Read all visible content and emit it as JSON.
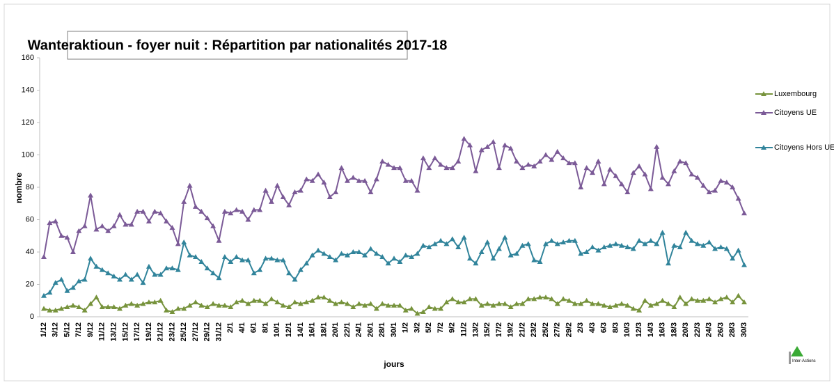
{
  "chart_data": {
    "type": "line",
    "title": "Wanteraktioun - foyer nuit : Répartition par nationalités 2017-18",
    "y_label": "nombre",
    "x_label": "jours",
    "logo": "Inter-Actions",
    "categories": [
      "1/12",
      null,
      "3/12",
      null,
      "5/12",
      null,
      "7/12",
      null,
      "9/12",
      null,
      "11/12",
      null,
      "13/12",
      null,
      "15/12",
      null,
      "17/12",
      null,
      "19/12",
      null,
      "21/12",
      null,
      "23/12",
      null,
      "25/12",
      null,
      "27/12",
      null,
      "29/12",
      null,
      "31/12",
      null,
      "2/1",
      null,
      "4/1",
      null,
      "6/1",
      null,
      "8/1",
      null,
      "10/1",
      null,
      "12/1",
      null,
      "14/1",
      null,
      "16/1",
      null,
      "18/1",
      null,
      "20/1",
      null,
      "22/1",
      null,
      "24/1",
      null,
      "26/1",
      null,
      "28/1",
      null,
      "30/1",
      null,
      "1/2",
      null,
      "3/2",
      null,
      "5/2",
      null,
      "7/2",
      null,
      "9/2",
      null,
      "11/2",
      null,
      "13/2",
      null,
      "15/2",
      null,
      "17/2",
      null,
      "19/2",
      null,
      "21/2",
      null,
      "23/2",
      null,
      "25/2",
      null,
      "27/2",
      null,
      "29/2",
      null,
      "2/3",
      null,
      "4/3",
      null,
      "6/3",
      null,
      "8/3",
      null,
      "10/3",
      null,
      "12/3",
      null,
      "14/3",
      null,
      "16/3",
      null,
      "18/3",
      null,
      "20/3",
      null,
      "22/3",
      null,
      "24/3",
      null,
      "26/3",
      null,
      "28/3",
      null,
      "30/3"
    ],
    "series": [
      {
        "name": "Luxembourg",
        "color": "#77933c",
        "values": [
          5,
          4,
          4,
          5,
          6,
          7,
          6,
          4,
          8,
          12,
          6,
          6,
          6,
          5,
          7,
          8,
          7,
          8,
          9,
          9,
          10,
          4,
          3,
          5,
          5,
          7,
          9,
          7,
          6,
          8,
          7,
          7,
          6,
          9,
          10,
          8,
          10,
          10,
          8,
          11,
          9,
          7,
          6,
          9,
          8,
          9,
          10,
          12,
          12,
          10,
          8,
          9,
          8,
          6,
          8,
          7,
          8,
          5,
          8,
          7,
          7,
          7,
          4,
          5,
          2,
          3,
          6,
          5,
          5,
          9,
          11,
          9,
          9,
          11,
          11,
          7,
          8,
          7,
          8,
          8,
          6,
          8,
          8,
          11,
          11,
          12,
          12,
          11,
          8,
          11,
          10,
          8,
          8,
          10,
          8,
          8,
          7,
          6,
          7,
          8,
          7,
          5,
          4,
          10,
          7,
          8,
          10,
          8,
          6,
          12,
          8,
          11,
          10,
          10,
          11,
          9,
          11,
          12,
          9,
          13,
          9
        ]
      },
      {
        "name": "Citoyens UE",
        "color": "#7b5a97",
        "values": [
          37,
          58,
          59,
          50,
          49,
          40,
          53,
          56,
          75,
          54,
          56,
          53,
          56,
          63,
          57,
          57,
          65,
          65,
          59,
          65,
          64,
          59,
          55,
          45,
          71,
          81,
          68,
          65,
          61,
          56,
          47,
          65,
          64,
          66,
          65,
          60,
          66,
          66,
          78,
          71,
          81,
          74,
          69,
          77,
          78,
          85,
          84,
          88,
          83,
          74,
          77,
          92,
          84,
          86,
          84,
          84,
          77,
          85,
          96,
          94,
          92,
          92,
          84,
          84,
          78,
          98,
          92,
          98,
          94,
          92,
          92,
          96,
          110,
          106,
          90,
          103,
          105,
          108,
          92,
          106,
          104,
          96,
          92,
          94,
          93,
          96,
          100,
          97,
          102,
          98,
          95,
          95,
          80,
          92,
          89,
          96,
          82,
          91,
          87,
          82,
          77,
          89,
          93,
          88,
          79,
          105,
          86,
          82,
          90,
          96,
          95,
          88,
          86,
          81,
          77,
          78,
          84,
          83,
          80,
          73,
          64
        ]
      },
      {
        "name": "Citoyens Hors UE",
        "color": "#31849b",
        "values": [
          13,
          15,
          21,
          23,
          16,
          18,
          22,
          23,
          36,
          31,
          29,
          27,
          25,
          23,
          26,
          23,
          26,
          21,
          31,
          26,
          26,
          30,
          30,
          29,
          46,
          38,
          37,
          34,
          30,
          27,
          24,
          37,
          34,
          37,
          35,
          35,
          27,
          29,
          36,
          36,
          35,
          35,
          27,
          23,
          29,
          33,
          38,
          41,
          39,
          37,
          35,
          39,
          38,
          40,
          40,
          38,
          42,
          39,
          37,
          33,
          36,
          34,
          38,
          37,
          39,
          44,
          43,
          45,
          47,
          45,
          48,
          43,
          49,
          36,
          33,
          40,
          46,
          36,
          42,
          49,
          38,
          39,
          44,
          45,
          35,
          34,
          45,
          47,
          45,
          46,
          47,
          47,
          39,
          40,
          43,
          41,
          43,
          44,
          45,
          44,
          43,
          42,
          47,
          45,
          47,
          45,
          52,
          33,
          44,
          43,
          52,
          47,
          45,
          44,
          46,
          42,
          43,
          42,
          36,
          41,
          32
        ]
      }
    ],
    "ylim": [
      0,
      160
    ],
    "yticks": [
      0,
      20,
      40,
      60,
      80,
      100,
      120,
      140,
      160
    ],
    "grid": false
  }
}
